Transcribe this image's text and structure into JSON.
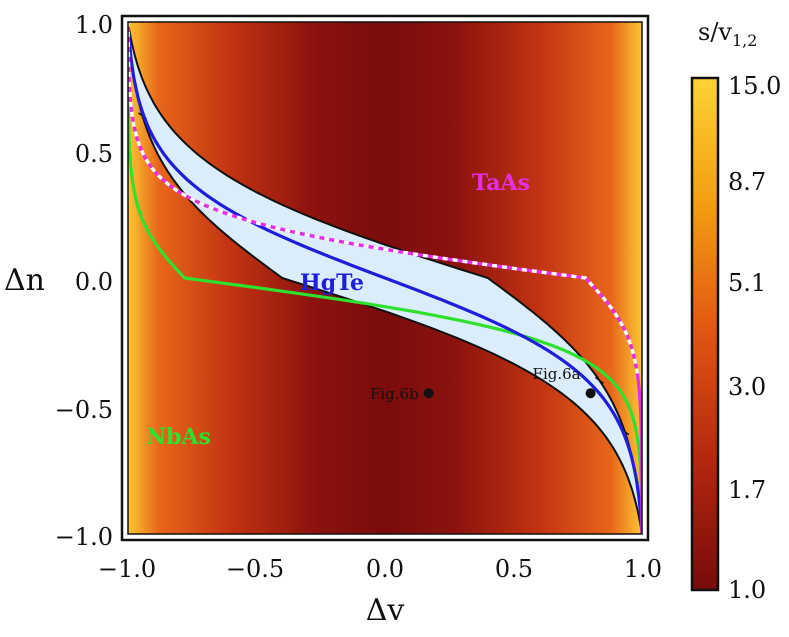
{
  "chart_data": {
    "type": "heatmap",
    "title": "",
    "xlabel": "Δv",
    "ylabel": "Δn",
    "xlim": [
      -1.0,
      1.0
    ],
    "ylim": [
      -1.0,
      1.0
    ],
    "xticks": [
      "−1.0",
      "−0.5",
      "0.0",
      "0.5",
      "1.0"
    ],
    "xtick_values": [
      -1.0,
      -0.5,
      0.0,
      0.5,
      1.0
    ],
    "yticks": [
      "1.0",
      "0.5",
      "0.0",
      "−0.5",
      "−1.0"
    ],
    "ytick_values": [
      1.0,
      0.5,
      0.0,
      -0.5,
      -1.0
    ],
    "colorbar": {
      "title": "s/v",
      "title_sub": "1,2",
      "labels": [
        "15.0",
        "8.7",
        "5.1",
        "3.0",
        "1.7",
        "1.0"
      ],
      "colors": [
        "#fbc531",
        "#f39c12",
        "#e86412",
        "#cc3a10",
        "#a41e0d",
        "#7a0c0c"
      ]
    },
    "colors": {
      "region_light": "#dbecfa",
      "heat_dark": "#7a0c0c",
      "heat_bright": "#fbc531",
      "nbas": "#2ee12e",
      "hgte": "#1e1edc",
      "taas": "#e62ee6",
      "boundary": "#111111"
    },
    "regions": {
      "light_region_note": "s/v below 1 (light blue band between the two black boundaries)",
      "left_boundary_center_x": -0.4,
      "right_boundary_center_x": 0.4
    },
    "series": [
      {
        "name": "NbAs",
        "label": "NbAs",
        "center_x": -0.78,
        "steepness": 4.2
      },
      {
        "name": "HgTe",
        "label": "HgTe",
        "center_x": 0.0,
        "steepness": 2.6
      },
      {
        "name": "TaAs",
        "label": "TaAs",
        "center_x": 0.78,
        "steepness": 4.2
      }
    ],
    "points": [
      {
        "label": "Fig.6b",
        "x": 0.17,
        "y": -0.45
      },
      {
        "label": "Fig.6a",
        "x": 0.8,
        "y": -0.45
      }
    ]
  }
}
